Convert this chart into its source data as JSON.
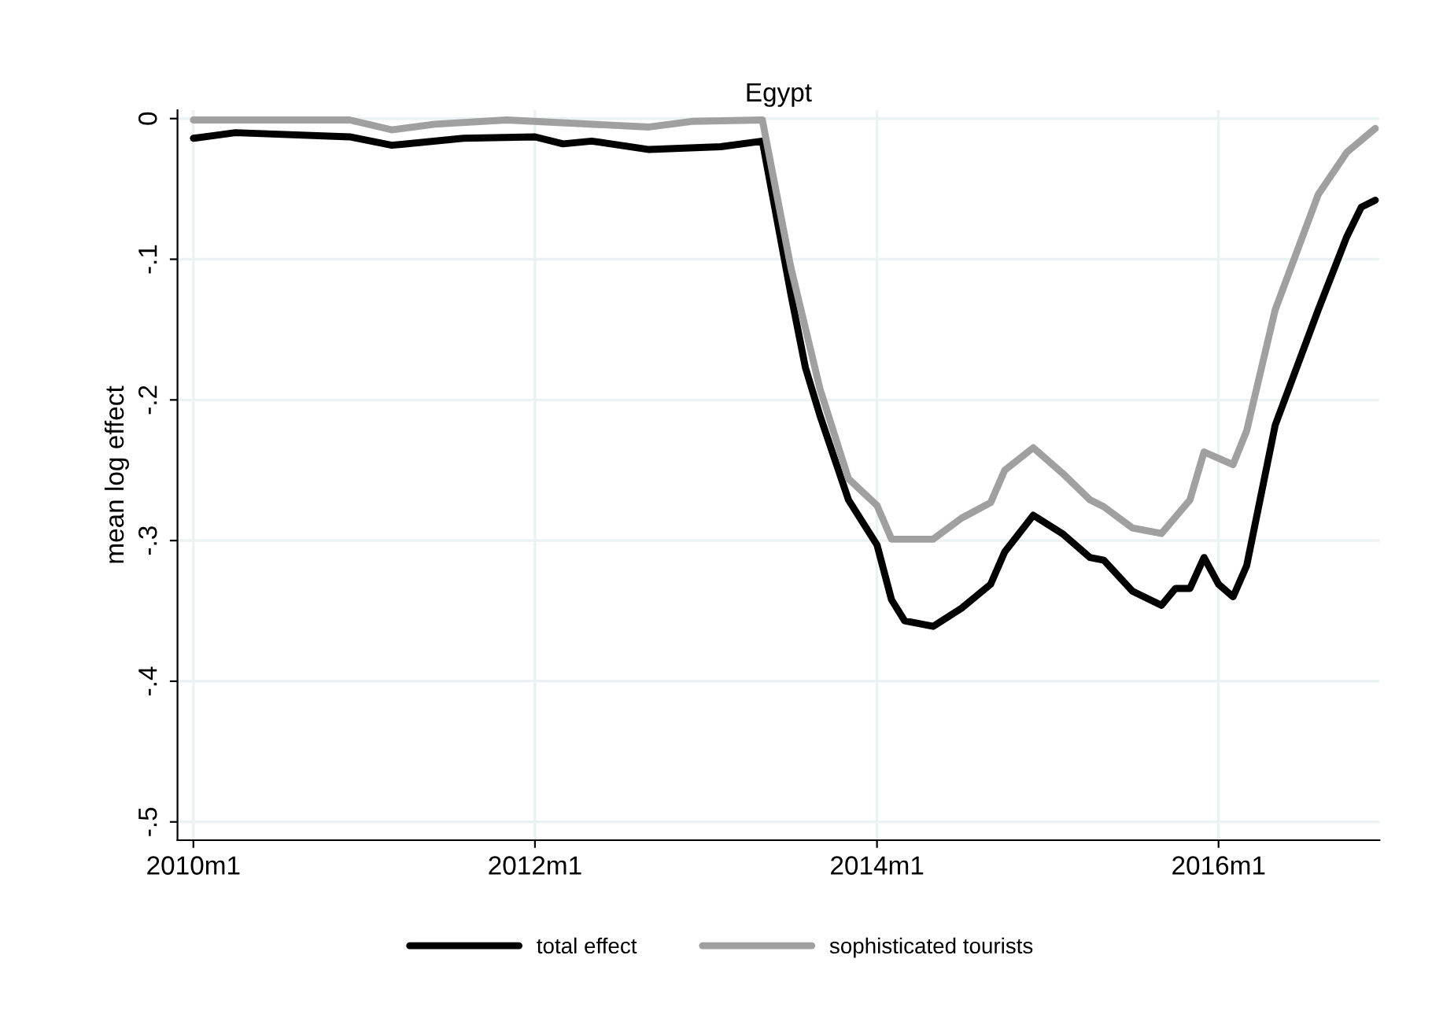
{
  "chart_data": {
    "type": "line",
    "title": "Egypt",
    "ylabel": "mean log effect",
    "xlim": [
      "2009-11-28",
      "2016-12-10"
    ],
    "xticks": [
      {
        "value": "2010-01",
        "label": "2010m1"
      },
      {
        "value": "2012-01",
        "label": "2012m1"
      },
      {
        "value": "2014-01",
        "label": "2014m1"
      },
      {
        "value": "2016-01",
        "label": "2016m1"
      }
    ],
    "ylim": [
      -0.513,
      0.006
    ],
    "yticks": [
      {
        "value": 0,
        "label": "0"
      },
      {
        "value": -0.1,
        "label": "-.1"
      },
      {
        "value": -0.2,
        "label": "-.2"
      },
      {
        "value": -0.3,
        "label": "-.3"
      },
      {
        "value": -0.4,
        "label": "-.4"
      },
      {
        "value": -0.5,
        "label": "-.5"
      }
    ],
    "grid": true,
    "legend": "bottom",
    "marker": "none",
    "line_style": "solid",
    "series": [
      {
        "name": "total effect",
        "color": "#000000",
        "x": [
          "2010-01",
          "2010-04",
          "2010-12",
          "2011-03",
          "2011-08",
          "2012-01",
          "2012-03",
          "2012-05",
          "2012-09",
          "2013-02",
          "2013-05",
          "2013-07",
          "2013-08",
          "2013-09",
          "2013-11",
          "2014-01",
          "2014-02",
          "2014-03",
          "2014-05",
          "2014-07",
          "2014-09",
          "2014-10",
          "2014-12",
          "2015-02",
          "2015-04",
          "2015-05",
          "2015-07",
          "2015-09",
          "2015-10",
          "2015-11",
          "2015-12",
          "2016-01",
          "2016-02",
          "2016-03",
          "2016-05",
          "2016-08",
          "2016-10",
          "2016-11",
          "2016-12"
        ],
        "values": [
          -0.014,
          -0.01,
          -0.013,
          -0.019,
          -0.014,
          -0.013,
          -0.018,
          -0.016,
          -0.022,
          -0.02,
          -0.016,
          -0.125,
          -0.177,
          -0.211,
          -0.271,
          -0.303,
          -0.342,
          -0.357,
          -0.361,
          -0.348,
          -0.331,
          -0.308,
          -0.282,
          -0.295,
          -0.312,
          -0.314,
          -0.336,
          -0.346,
          -0.334,
          -0.334,
          -0.312,
          -0.331,
          -0.34,
          -0.318,
          -0.218,
          -0.136,
          -0.084,
          -0.063,
          -0.058
        ]
      },
      {
        "name": "sophisticated tourists",
        "color": "#a0a0a0",
        "x": [
          "2010-01",
          "2010-12",
          "2011-03",
          "2011-06",
          "2011-11",
          "2012-09",
          "2012-12",
          "2013-05",
          "2013-07",
          "2013-09",
          "2013-11",
          "2014-01",
          "2014-02",
          "2014-05",
          "2014-07",
          "2014-09",
          "2014-10",
          "2014-12",
          "2015-02",
          "2015-04",
          "2015-05",
          "2015-07",
          "2015-09",
          "2015-11",
          "2015-12",
          "2016-02",
          "2016-03",
          "2016-05",
          "2016-08",
          "2016-10",
          "2016-12"
        ],
        "values": [
          -0.001,
          -0.001,
          -0.008,
          -0.004,
          -0.001,
          -0.006,
          -0.002,
          -0.001,
          -0.106,
          -0.192,
          -0.256,
          -0.275,
          -0.299,
          -0.299,
          -0.284,
          -0.273,
          -0.25,
          -0.234,
          -0.252,
          -0.271,
          -0.276,
          -0.291,
          -0.295,
          -0.271,
          -0.237,
          -0.246,
          -0.222,
          -0.136,
          -0.054,
          -0.024,
          -0.007
        ]
      }
    ]
  }
}
